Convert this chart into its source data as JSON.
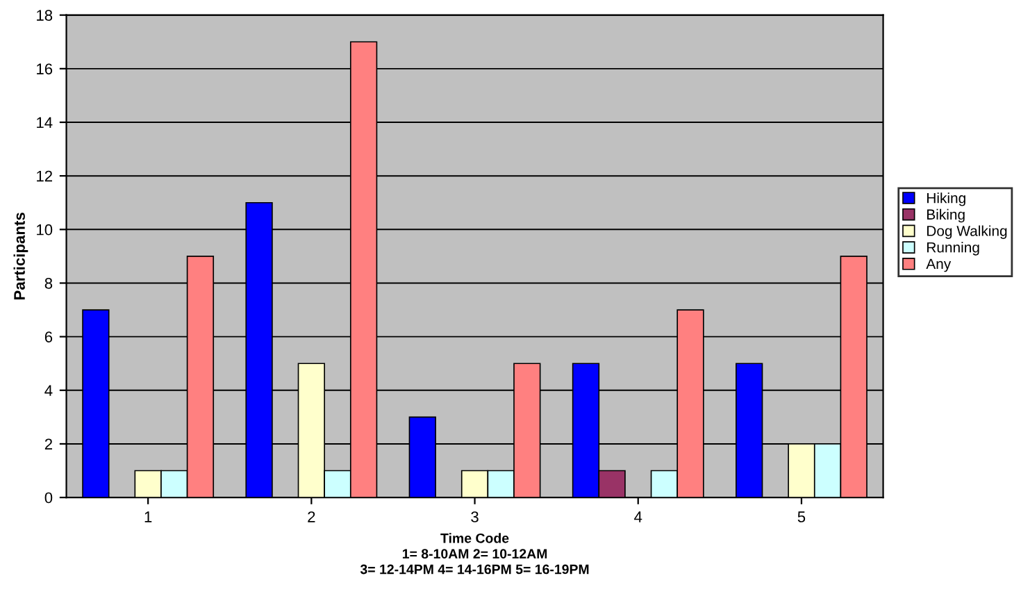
{
  "chart_data": {
    "type": "bar",
    "categories": [
      "1",
      "2",
      "3",
      "4",
      "5"
    ],
    "xlabel": "Time Code\n1= 8-10AM 2= 10-12AM\n3= 12-14PM 4= 14-16PM 5= 16-19PM",
    "ylabel": "Participants",
    "series": [
      {
        "name": "Hiking",
        "color": "#0000ff",
        "values": [
          7,
          11,
          3,
          5,
          5
        ]
      },
      {
        "name": "Biking",
        "color": "#993366",
        "values": [
          null,
          null,
          null,
          1,
          null
        ]
      },
      {
        "name": "Dog Walking",
        "color": "#ffffcc",
        "values": [
          1,
          5,
          1,
          null,
          2
        ]
      },
      {
        "name": "Running",
        "color": "#ccffff",
        "values": [
          1,
          1,
          1,
          1,
          2
        ]
      },
      {
        "name": "Any",
        "color": "#ff8080",
        "values": [
          9,
          17,
          5,
          7,
          9
        ]
      }
    ],
    "ylim": [
      0,
      18
    ],
    "yticks": [
      0,
      2,
      4,
      6,
      8,
      10,
      12,
      14,
      16,
      18
    ],
    "grid": "y",
    "legend": "right"
  }
}
